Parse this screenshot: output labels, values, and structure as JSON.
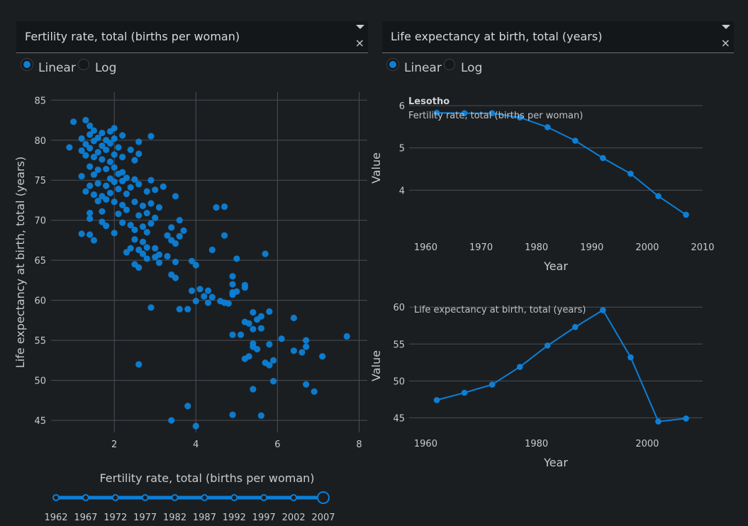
{
  "left_dropdown": {
    "value": "Fertility rate, total (births per woman)",
    "arrow_icon": "caret-down-icon",
    "clear_icon": "close-icon",
    "clear_glyph": "×"
  },
  "right_dropdown": {
    "value": "Life expectancy at birth, total (years)",
    "arrow_icon": "caret-down-icon",
    "clear_icon": "close-icon",
    "clear_glyph": "×"
  },
  "left_radio": {
    "options": [
      "Linear",
      "Log"
    ],
    "selected": "Linear"
  },
  "right_radio": {
    "options": [
      "Linear",
      "Log"
    ],
    "selected": "Linear"
  },
  "slider": {
    "marks": [
      "1962",
      "1967",
      "1972",
      "1977",
      "1982",
      "1987",
      "1992",
      "1997",
      "2002",
      "2007"
    ],
    "selected": "2007"
  },
  "colors": {
    "accent": "#0d7fd6",
    "background": "#1b1e21",
    "grid": "#4a4f53"
  },
  "chart_data": [
    {
      "type": "scatter",
      "xlabel": "Fertility rate, total (births per woman)",
      "ylabel": "Life expectancy at birth, total (years)",
      "xlim": [
        0.45,
        8.2
      ],
      "ylim": [
        43.5,
        86
      ],
      "xticks": [
        2,
        4,
        6,
        8
      ],
      "yticks": [
        45,
        50,
        55,
        60,
        65,
        70,
        75,
        80,
        85
      ],
      "points": [
        [
          1.0,
          82.3
        ],
        [
          1.3,
          82.5
        ],
        [
          1.4,
          81.8
        ],
        [
          1.5,
          81.2
        ],
        [
          1.7,
          80.9
        ],
        [
          1.9,
          81.1
        ],
        [
          2.0,
          81.5
        ],
        [
          2.2,
          80.6
        ],
        [
          1.2,
          80.2
        ],
        [
          1.4,
          80.7
        ],
        [
          1.6,
          80.3
        ],
        [
          1.8,
          80.0
        ],
        [
          2.0,
          80.2
        ],
        [
          1.3,
          79.5
        ],
        [
          1.5,
          79.9
        ],
        [
          1.7,
          79.3
        ],
        [
          1.9,
          79.6
        ],
        [
          2.1,
          79.1
        ],
        [
          0.9,
          79.1
        ],
        [
          1.2,
          78.7
        ],
        [
          1.4,
          79.0
        ],
        [
          1.6,
          78.5
        ],
        [
          1.8,
          78.8
        ],
        [
          2.0,
          78.2
        ],
        [
          2.2,
          77.9
        ],
        [
          1.5,
          77.9
        ],
        [
          1.7,
          77.6
        ],
        [
          1.3,
          78.1
        ],
        [
          1.9,
          77.3
        ],
        [
          2.4,
          78.8
        ],
        [
          2.5,
          77.5
        ],
        [
          2.6,
          78.3
        ],
        [
          2.9,
          80.5
        ],
        [
          2.6,
          79.8
        ],
        [
          1.4,
          76.7
        ],
        [
          1.6,
          76.3
        ],
        [
          1.8,
          76.4
        ],
        [
          2.0,
          76.6
        ],
        [
          2.2,
          76.0
        ],
        [
          1.2,
          75.5
        ],
        [
          1.5,
          75.7
        ],
        [
          1.9,
          75.2
        ],
        [
          2.1,
          75.8
        ],
        [
          2.3,
          75.3
        ],
        [
          2.5,
          75.1
        ],
        [
          2.9,
          75.0
        ],
        [
          2.2,
          74.9
        ],
        [
          1.4,
          74.3
        ],
        [
          1.6,
          74.6
        ],
        [
          1.8,
          74.3
        ],
        [
          2.0,
          74.8
        ],
        [
          2.1,
          73.9
        ],
        [
          2.4,
          74.1
        ],
        [
          2.6,
          74.5
        ],
        [
          1.3,
          73.6
        ],
        [
          1.5,
          73.2
        ],
        [
          1.7,
          73.0
        ],
        [
          1.9,
          73.4
        ],
        [
          2.3,
          73.3
        ],
        [
          2.8,
          73.6
        ],
        [
          3.0,
          73.8
        ],
        [
          3.2,
          74.2
        ],
        [
          3.5,
          73.0
        ],
        [
          1.6,
          72.4
        ],
        [
          1.8,
          72.6
        ],
        [
          2.0,
          72.3
        ],
        [
          2.2,
          71.9
        ],
        [
          2.5,
          72.3
        ],
        [
          2.7,
          71.8
        ],
        [
          2.9,
          72.1
        ],
        [
          3.1,
          71.6
        ],
        [
          4.5,
          71.6
        ],
        [
          4.7,
          71.7
        ],
        [
          1.4,
          70.9
        ],
        [
          1.7,
          71.1
        ],
        [
          2.1,
          70.8
        ],
        [
          2.3,
          71.3
        ],
        [
          2.6,
          70.6
        ],
        [
          2.8,
          70.9
        ],
        [
          3.0,
          70.3
        ],
        [
          3.6,
          70.0
        ],
        [
          1.4,
          70.2
        ],
        [
          1.7,
          69.8
        ],
        [
          1.8,
          69.3
        ],
        [
          2.2,
          69.7
        ],
        [
          2.4,
          69.4
        ],
        [
          2.7,
          69.2
        ],
        [
          2.9,
          69.6
        ],
        [
          3.4,
          69.1
        ],
        [
          3.7,
          68.7
        ],
        [
          1.2,
          68.3
        ],
        [
          1.4,
          68.2
        ],
        [
          2.0,
          68.4
        ],
        [
          2.5,
          68.8
        ],
        [
          2.8,
          68.5
        ],
        [
          3.3,
          68.1
        ],
        [
          3.6,
          68.0
        ],
        [
          4.7,
          68.1
        ],
        [
          1.5,
          67.5
        ],
        [
          2.5,
          67.6
        ],
        [
          2.7,
          67.3
        ],
        [
          3.4,
          67.5
        ],
        [
          3.5,
          67.1
        ],
        [
          2.4,
          66.5
        ],
        [
          2.6,
          66.3
        ],
        [
          2.8,
          66.6
        ],
        [
          3.0,
          66.5
        ],
        [
          2.3,
          66.0
        ],
        [
          2.7,
          65.8
        ],
        [
          3.1,
          65.7
        ],
        [
          4.4,
          66.3
        ],
        [
          5.7,
          65.8
        ],
        [
          2.8,
          65.2
        ],
        [
          3.0,
          65.4
        ],
        [
          3.3,
          65.5
        ],
        [
          3.9,
          64.9
        ],
        [
          4.0,
          64.4
        ],
        [
          5.0,
          65.2
        ],
        [
          2.5,
          64.5
        ],
        [
          3.1,
          64.7
        ],
        [
          3.5,
          64.8
        ],
        [
          2.6,
          64.1
        ],
        [
          3.4,
          63.2
        ],
        [
          3.5,
          62.8
        ],
        [
          4.9,
          63.0
        ],
        [
          4.1,
          61.4
        ],
        [
          4.3,
          61.2
        ],
        [
          5.2,
          61.9
        ],
        [
          5.2,
          61.6
        ],
        [
          3.9,
          61.2
        ],
        [
          4.2,
          60.5
        ],
        [
          4.4,
          60.4
        ],
        [
          4.9,
          61.0
        ],
        [
          4.9,
          62.0
        ],
        [
          4.9,
          60.7
        ],
        [
          5.0,
          61.1
        ],
        [
          4.3,
          59.7
        ],
        [
          4.8,
          59.6
        ],
        [
          4.7,
          59.7
        ],
        [
          4.6,
          59.9
        ],
        [
          4.0,
          59.9
        ],
        [
          2.9,
          59.1
        ],
        [
          3.6,
          58.9
        ],
        [
          3.8,
          58.9
        ],
        [
          5.4,
          58.5
        ],
        [
          5.6,
          58.0
        ],
        [
          5.8,
          58.6
        ],
        [
          6.4,
          57.8
        ],
        [
          5.2,
          57.3
        ],
        [
          5.3,
          57.1
        ],
        [
          5.5,
          57.6
        ],
        [
          5.4,
          56.4
        ],
        [
          5.6,
          56.5
        ],
        [
          4.9,
          55.7
        ],
        [
          5.1,
          55.7
        ],
        [
          6.1,
          55.2
        ],
        [
          6.7,
          55.0
        ],
        [
          7.7,
          55.5
        ],
        [
          5.4,
          54.6
        ],
        [
          5.4,
          54.2
        ],
        [
          5.8,
          54.5
        ],
        [
          5.5,
          53.9
        ],
        [
          6.4,
          53.7
        ],
        [
          6.6,
          53.5
        ],
        [
          6.7,
          54.2
        ],
        [
          7.1,
          53.0
        ],
        [
          5.2,
          52.7
        ],
        [
          5.3,
          53.0
        ],
        [
          5.7,
          52.2
        ],
        [
          5.8,
          51.9
        ],
        [
          5.9,
          52.5
        ],
        [
          2.6,
          52.0
        ],
        [
          5.9,
          49.9
        ],
        [
          6.7,
          49.5
        ],
        [
          6.9,
          48.6
        ],
        [
          5.4,
          48.9
        ],
        [
          3.8,
          46.8
        ],
        [
          4.9,
          45.7
        ],
        [
          5.6,
          45.6
        ],
        [
          3.4,
          45.0
        ],
        [
          4.0,
          44.3
        ]
      ]
    },
    {
      "type": "line",
      "title": "Lesotho",
      "subtitle": "Fertility rate, total (births per woman)",
      "xlabel": "Year",
      "ylabel": "Value",
      "xlim": [
        1957,
        2010
      ],
      "ylim": [
        3.0,
        6.05
      ],
      "xticks": [
        1960,
        1970,
        1980,
        1990,
        2000,
        2010
      ],
      "yticks": [
        4,
        5,
        6
      ],
      "x": [
        1962,
        1967,
        1972,
        1977,
        1982,
        1987,
        1992,
        1997,
        2002,
        2007
      ],
      "y": [
        5.83,
        5.82,
        5.82,
        5.72,
        5.49,
        5.17,
        4.76,
        4.39,
        3.86,
        3.42
      ]
    },
    {
      "type": "line",
      "title": "Life expectancy at birth, total (years)",
      "xlabel": "Year",
      "ylabel": "Value",
      "xlim": [
        1957,
        2010
      ],
      "ylim": [
        43.5,
        60.6
      ],
      "xticks": [
        1960,
        1980,
        2000
      ],
      "yticks": [
        45,
        50,
        55,
        60
      ],
      "x": [
        1962,
        1967,
        1972,
        1977,
        1982,
        1987,
        1992,
        1997,
        2002,
        2007
      ],
      "y": [
        47.4,
        48.4,
        49.5,
        51.9,
        54.8,
        57.3,
        59.6,
        53.2,
        44.5,
        44.9
      ]
    }
  ]
}
